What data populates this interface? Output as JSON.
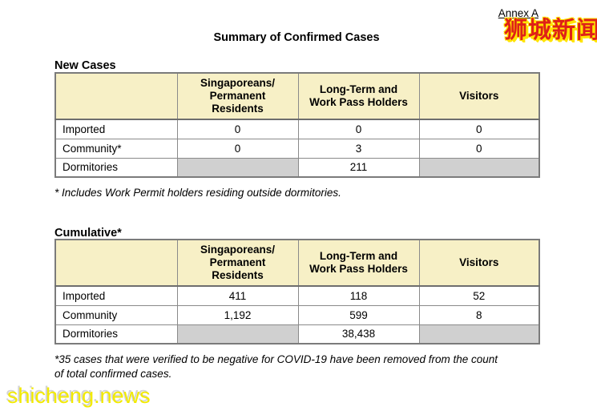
{
  "page": {
    "annex": "Annex A",
    "title": "Summary of Confirmed Cases"
  },
  "watermarks": {
    "chinese": "狮城新闻",
    "site": "shicheng.news"
  },
  "colors": {
    "header_bg": "#F7F0C6",
    "shaded_cell": "#D0D0D0",
    "table_border": "#7B7B7B",
    "watermark_red": "#DF2118",
    "watermark_yellow": "#FFE400",
    "site_yellow": "#F2EA00"
  },
  "column_headers": {
    "row_label": "",
    "spr": "Singaporeans/\nPermanent\nResidents",
    "ltwp": "Long-Term and\nWork Pass Holders",
    "visitors": "Visitors"
  },
  "new_cases": {
    "heading": "New Cases",
    "rows": [
      {
        "label": "Imported",
        "spr": "0",
        "ltwp": "0",
        "visitors": "0"
      },
      {
        "label": "Community*",
        "spr": "0",
        "ltwp": "3",
        "visitors": "0"
      },
      {
        "label": "Dormitories",
        "spr": "",
        "ltwp": "211",
        "visitors": ""
      }
    ],
    "footnote": "* Includes Work Permit holders residing outside dormitories."
  },
  "cumulative": {
    "heading": "Cumulative*",
    "rows": [
      {
        "label": "Imported",
        "spr": "411",
        "ltwp": "118",
        "visitors": "52"
      },
      {
        "label": "Community",
        "spr": "1,192",
        "ltwp": "599",
        "visitors": "8"
      },
      {
        "label": "Dormitories",
        "spr": "",
        "ltwp": "38,438",
        "visitors": ""
      }
    ],
    "footnote": "*35 cases that were verified to be negative for COVID-19 have been removed from the count\nof total confirmed cases."
  }
}
